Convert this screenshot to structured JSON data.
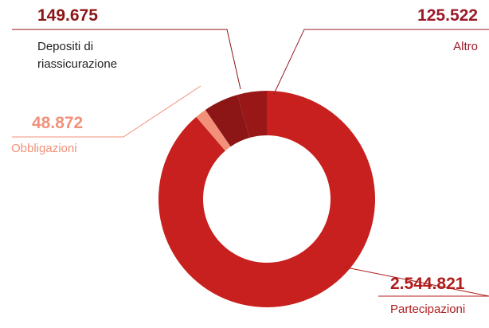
{
  "chart_data": {
    "type": "donut",
    "categories": [
      "Partecipazioni",
      "Obbligazioni",
      "Depositi di riassicurazione",
      "Altro"
    ],
    "values": [
      2544821,
      48872,
      149675,
      125522
    ],
    "value_labels": [
      "2.544.821",
      "48.872",
      "149.675",
      "125.522"
    ],
    "colors": [
      "#c8201e",
      "#f2907a",
      "#8c1515",
      "#9a1718"
    ]
  }
}
